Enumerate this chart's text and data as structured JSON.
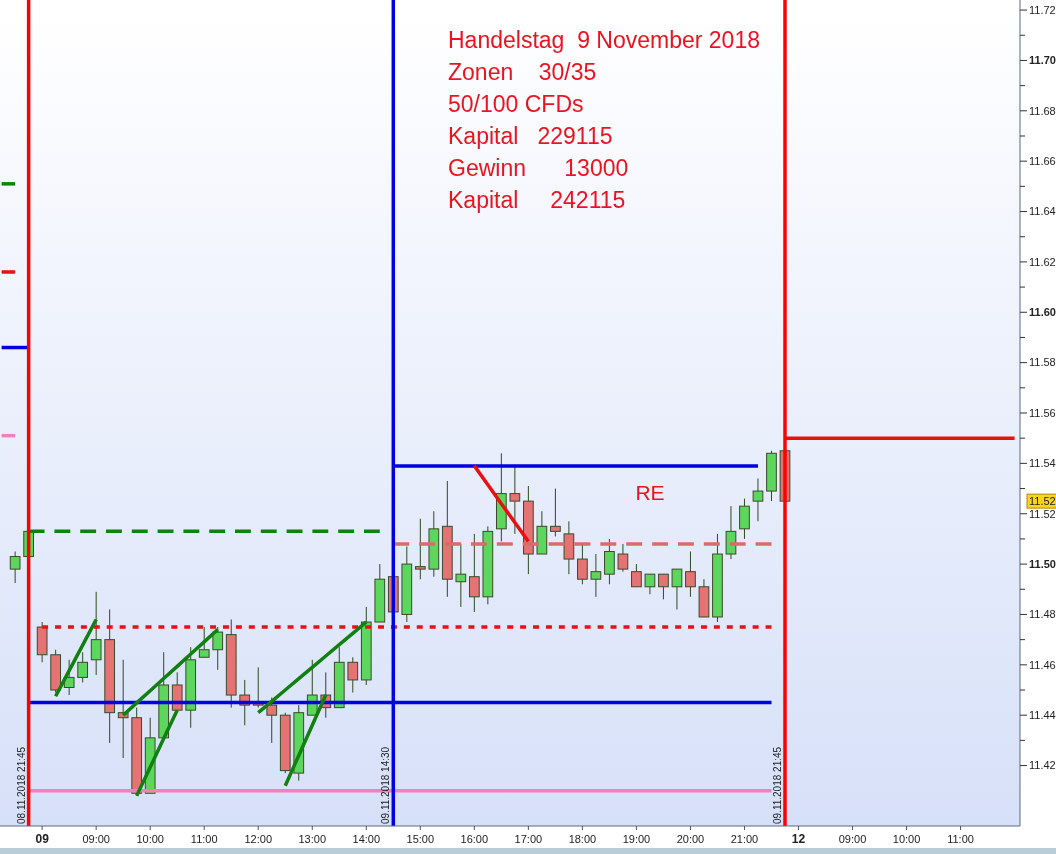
{
  "chart_data": {
    "type": "candlestick",
    "categories": [
      null,
      null,
      null,
      "09",
      null,
      null,
      null,
      "09:00",
      null,
      null,
      null,
      "10:00",
      null,
      null,
      null,
      "11:00",
      null,
      null,
      null,
      "12:00",
      null,
      null,
      null,
      "13:00",
      null,
      null,
      null,
      "14:00",
      null,
      null,
      null,
      "15:00",
      null,
      null,
      null,
      "16:00",
      null,
      null,
      null,
      "17:00",
      null,
      null,
      null,
      "18:00",
      null,
      null,
      null,
      "19:00",
      null,
      null,
      null,
      "20:00",
      null,
      null,
      null,
      "21:00",
      null,
      null,
      null,
      "12",
      null,
      null,
      null,
      "09:00",
      null,
      null,
      null,
      "10:00",
      null,
      null,
      null,
      "11:00",
      null,
      null,
      null,
      null
    ],
    "ylim": [
      11.396,
      11.724
    ],
    "yticks": [
      {
        "value": 11.42,
        "label": "11.42"
      },
      {
        "value": 11.43,
        "label": null
      },
      {
        "value": 11.44,
        "label": "11.44"
      },
      {
        "value": 11.45,
        "label": null
      },
      {
        "value": 11.46,
        "label": "11.46"
      },
      {
        "value": 11.47,
        "label": null
      },
      {
        "value": 11.48,
        "label": "11.48"
      },
      {
        "value": 11.49,
        "label": null
      },
      {
        "value": 11.5,
        "label": "11.50"
      },
      {
        "value": 11.51,
        "label": null
      },
      {
        "value": 11.52,
        "label": "11.52"
      },
      {
        "value": 11.53,
        "label": null
      },
      {
        "value": 11.54,
        "label": "11.54"
      },
      {
        "value": 11.55,
        "label": null
      },
      {
        "value": 11.56,
        "label": "11.56"
      },
      {
        "value": 11.57,
        "label": null
      },
      {
        "value": 11.58,
        "label": "11.58"
      },
      {
        "value": 11.59,
        "label": null
      },
      {
        "value": 11.6,
        "label": "11.60"
      },
      {
        "value": 11.61,
        "label": null
      },
      {
        "value": 11.62,
        "label": "11.62"
      },
      {
        "value": 11.63,
        "label": null
      },
      {
        "value": 11.64,
        "label": "11.64"
      },
      {
        "value": 11.65,
        "label": null
      },
      {
        "value": 11.66,
        "label": "11.66"
      },
      {
        "value": 11.67,
        "label": null
      },
      {
        "value": 11.68,
        "label": "11.68"
      },
      {
        "value": 11.69,
        "label": null
      },
      {
        "value": 11.7,
        "label": "11.70"
      },
      {
        "value": 11.71,
        "label": null
      },
      {
        "value": 11.72,
        "label": "11.72"
      }
    ],
    "series": [
      {
        "type": "line",
        "color": "#0000e0",
        "line_style": "solid",
        "values": [
          null,
          null,
          11.445,
          11.445,
          11.445,
          11.445,
          11.445,
          11.445,
          11.445,
          11.445,
          11.445,
          11.445,
          11.445,
          11.445,
          11.445,
          11.445,
          11.445,
          11.445,
          11.445,
          11.445,
          11.445,
          11.445,
          11.445,
          11.445,
          11.445,
          11.445,
          11.445,
          11.445,
          11.445,
          11.445,
          11.445,
          11.445,
          11.445,
          11.445,
          11.445,
          11.445,
          11.445,
          11.445,
          11.445,
          11.445,
          11.445,
          11.445,
          11.445,
          11.445,
          11.445,
          11.445,
          11.445,
          11.445,
          11.445,
          11.445,
          11.445,
          11.445,
          11.445,
          11.445,
          11.445,
          11.445,
          11.445,
          11.445,
          null,
          null,
          null,
          null,
          null,
          null,
          null,
          null,
          null,
          null,
          null,
          null,
          null,
          null,
          null,
          null,
          null,
          null
        ]
      },
      {
        "type": "line",
        "color": "#f080c0",
        "line_style": "solid",
        "values": [
          null,
          null,
          11.41,
          11.41,
          11.41,
          11.41,
          11.41,
          11.41,
          11.41,
          11.41,
          11.41,
          11.41,
          11.41,
          11.41,
          11.41,
          11.41,
          11.41,
          11.41,
          11.41,
          11.41,
          11.41,
          11.41,
          11.41,
          11.41,
          11.41,
          11.41,
          11.41,
          11.41,
          11.41,
          11.41,
          11.41,
          11.41,
          11.41,
          11.41,
          11.41,
          11.41,
          11.41,
          11.41,
          11.41,
          11.41,
          11.41,
          11.41,
          11.41,
          11.41,
          11.41,
          11.41,
          11.41,
          11.41,
          11.41,
          11.41,
          11.41,
          11.41,
          11.41,
          11.41,
          11.41,
          11.41,
          11.41,
          11.41,
          null,
          null,
          null,
          null,
          null,
          null,
          null,
          null,
          null,
          null,
          null,
          null,
          null,
          null,
          null,
          null,
          null,
          null
        ]
      },
      {
        "type": "line",
        "color": "#e81010",
        "line_style": "dotted",
        "values": [
          null,
          null,
          null,
          11.475,
          11.475,
          11.475,
          11.475,
          11.475,
          11.475,
          11.475,
          11.475,
          11.475,
          11.475,
          11.475,
          11.475,
          11.475,
          11.475,
          11.475,
          11.475,
          11.475,
          11.475,
          11.475,
          11.475,
          11.475,
          11.475,
          11.475,
          11.475,
          11.475,
          11.475,
          11.475,
          11.475,
          11.475,
          11.475,
          11.475,
          11.475,
          11.475,
          11.475,
          11.475,
          11.475,
          11.475,
          11.475,
          11.475,
          11.475,
          11.475,
          11.475,
          11.475,
          11.475,
          11.475,
          11.475,
          11.475,
          11.475,
          11.475,
          11.475,
          11.475,
          11.475,
          11.475,
          11.475,
          11.475,
          null,
          null,
          null,
          null,
          null,
          null,
          null,
          null,
          null,
          null,
          null,
          null,
          null,
          null,
          null,
          null,
          null,
          null
        ]
      },
      {
        "type": "line",
        "color": "#108010",
        "line_style": "dashed",
        "values": [
          null,
          null,
          11.513,
          11.513,
          11.513,
          11.513,
          11.513,
          11.513,
          11.513,
          11.513,
          11.513,
          11.513,
          11.513,
          11.513,
          11.513,
          11.513,
          11.513,
          11.513,
          11.513,
          11.513,
          11.513,
          11.513,
          11.513,
          11.513,
          11.513,
          11.513,
          11.513,
          11.513,
          11.513,
          null,
          null,
          null,
          null,
          null,
          null,
          null,
          null,
          null,
          null,
          null,
          null,
          null,
          null,
          null,
          null,
          null,
          null,
          null,
          null,
          null,
          null,
          null,
          null,
          null,
          null,
          null,
          null,
          null,
          null,
          null,
          null,
          null,
          null,
          null,
          null,
          null,
          null,
          null,
          null,
          null,
          null,
          null,
          null,
          null,
          null,
          null
        ]
      },
      {
        "type": "line",
        "color": "#0000e0",
        "line_style": "solid",
        "values": [
          null,
          null,
          null,
          null,
          null,
          null,
          null,
          null,
          null,
          null,
          null,
          null,
          null,
          null,
          null,
          null,
          null,
          null,
          null,
          null,
          null,
          null,
          null,
          null,
          null,
          null,
          null,
          null,
          null,
          11.539,
          11.539,
          11.539,
          11.539,
          11.539,
          11.539,
          11.539,
          11.539,
          11.539,
          11.539,
          11.539,
          11.539,
          11.539,
          11.539,
          11.539,
          11.539,
          11.539,
          11.539,
          11.539,
          11.539,
          11.539,
          11.539,
          11.539,
          11.539,
          11.539,
          11.539,
          11.539,
          11.539,
          null,
          null,
          null,
          null,
          null,
          null,
          null,
          null,
          null,
          null,
          null,
          null,
          null,
          null,
          null,
          null,
          null,
          null,
          null
        ]
      },
      {
        "type": "line",
        "color": "#d96b6b",
        "line_style": "dashed",
        "values": [
          null,
          null,
          null,
          null,
          null,
          null,
          null,
          null,
          null,
          null,
          null,
          null,
          null,
          null,
          null,
          null,
          null,
          null,
          null,
          null,
          null,
          null,
          null,
          null,
          null,
          null,
          null,
          null,
          null,
          11.508,
          11.508,
          11.508,
          11.508,
          11.508,
          11.508,
          11.508,
          11.508,
          11.508,
          11.508,
          11.508,
          11.508,
          11.508,
          11.508,
          11.508,
          11.508,
          11.508,
          11.508,
          11.508,
          11.508,
          11.508,
          11.508,
          11.508,
          11.508,
          11.508,
          11.508,
          11.508,
          11.508,
          11.508,
          null,
          null,
          null,
          null,
          null,
          null,
          null,
          null,
          null,
          null,
          null,
          null,
          null,
          null,
          null,
          null,
          null,
          null
        ]
      },
      {
        "type": "line",
        "color": "#e81010",
        "line_style": "solid",
        "values": [
          null,
          null,
          null,
          null,
          null,
          null,
          null,
          null,
          null,
          null,
          null,
          null,
          null,
          null,
          null,
          null,
          null,
          null,
          null,
          null,
          null,
          null,
          null,
          null,
          null,
          null,
          null,
          null,
          null,
          null,
          null,
          null,
          null,
          null,
          null,
          null,
          null,
          null,
          null,
          null,
          null,
          null,
          null,
          null,
          null,
          null,
          null,
          null,
          null,
          null,
          null,
          null,
          null,
          null,
          null,
          null,
          null,
          null,
          11.55,
          11.55,
          11.55,
          11.55,
          11.55,
          11.55,
          11.55,
          11.55,
          11.55,
          11.55,
          11.55,
          11.55,
          11.55,
          11.55,
          11.55,
          11.55,
          11.55,
          11.55
        ]
      },
      {
        "type": "line",
        "color": "#0000e0",
        "line_style": "solid",
        "values": [
          11.586,
          11.586,
          11.586,
          null,
          null,
          null,
          null,
          null,
          null,
          null,
          null,
          null,
          null,
          null,
          null,
          null,
          null,
          null,
          null,
          null,
          null,
          null,
          null,
          null,
          null,
          null,
          null,
          null,
          null,
          null,
          null,
          null,
          null,
          null,
          null,
          null,
          null,
          null,
          null,
          null,
          null,
          null,
          null,
          null,
          null,
          null,
          null,
          null,
          null,
          null,
          null,
          null,
          null,
          null,
          null,
          null,
          null,
          null,
          null,
          null,
          null,
          null,
          null,
          null,
          null,
          null,
          null,
          null,
          null,
          null,
          null,
          null,
          null,
          null,
          null,
          null
        ]
      },
      {
        "type": "line",
        "color": "#108010",
        "line_style": "solid",
        "values": [
          11.651,
          11.651,
          null,
          null,
          null,
          null,
          null,
          null,
          null,
          null,
          null,
          null,
          null,
          null,
          null,
          null,
          null,
          null,
          null,
          null,
          null,
          null,
          null,
          null,
          null,
          null,
          null,
          null,
          null,
          null,
          null,
          null,
          null,
          null,
          null,
          null,
          null,
          null,
          null,
          null,
          null,
          null,
          null,
          null,
          null,
          null,
          null,
          null,
          null,
          null,
          null,
          null,
          null,
          null,
          null,
          null,
          null,
          null,
          null,
          null,
          null,
          null,
          null,
          null,
          null,
          null,
          null,
          null,
          null,
          null,
          null,
          null,
          null,
          null,
          null,
          null
        ]
      },
      {
        "type": "line",
        "color": "#e81010",
        "line_style": "solid",
        "values": [
          11.616,
          11.616,
          null,
          null,
          null,
          null,
          null,
          null,
          null,
          null,
          null,
          null,
          null,
          null,
          null,
          null,
          null,
          null,
          null,
          null,
          null,
          null,
          null,
          null,
          null,
          null,
          null,
          null,
          null,
          null,
          null,
          null,
          null,
          null,
          null,
          null,
          null,
          null,
          null,
          null,
          null,
          null,
          null,
          null,
          null,
          null,
          null,
          null,
          null,
          null,
          null,
          null,
          null,
          null,
          null,
          null,
          null,
          null,
          null,
          null,
          null,
          null,
          null,
          null,
          null,
          null,
          null,
          null,
          null,
          null,
          null,
          null,
          null,
          null,
          null,
          null
        ]
      },
      {
        "type": "line",
        "color": "#f080c0",
        "line_style": "solid",
        "values": [
          11.551,
          11.551,
          null,
          null,
          null,
          null,
          null,
          null,
          null,
          null,
          null,
          null,
          null,
          null,
          null,
          null,
          null,
          null,
          null,
          null,
          null,
          null,
          null,
          null,
          null,
          null,
          null,
          null,
          null,
          null,
          null,
          null,
          null,
          null,
          null,
          null,
          null,
          null,
          null,
          null,
          null,
          null,
          null,
          null,
          null,
          null,
          null,
          null,
          null,
          null,
          null,
          null,
          null,
          null,
          null,
          null,
          null,
          null,
          null,
          null,
          null,
          null,
          null,
          null,
          null,
          null,
          null,
          null,
          null,
          null,
          null,
          null,
          null,
          null,
          null,
          null
        ]
      },
      {
        "type": "line",
        "color": "#e81010",
        "line_style": "solid",
        "values": [
          null,
          null,
          null,
          null,
          null,
          null,
          null,
          null,
          null,
          null,
          null,
          null,
          null,
          null,
          null,
          null,
          null,
          null,
          null,
          null,
          null,
          null,
          null,
          null,
          null,
          null,
          null,
          null,
          null,
          null,
          null,
          null,
          null,
          null,
          null,
          11.539,
          11.5315,
          11.524,
          11.5165,
          11.509,
          null,
          null,
          null,
          null,
          null,
          null,
          null,
          null,
          null,
          null,
          null,
          null,
          null,
          null,
          null,
          null,
          null,
          null,
          null,
          null,
          null,
          null,
          null,
          null,
          null,
          null,
          null,
          null,
          null,
          null,
          null,
          null,
          null,
          null,
          null,
          null
        ]
      },
      {
        "type": "line",
        "color": "#108010",
        "line_style": "solid",
        "values": [
          null,
          null,
          null,
          null,
          11.4475,
          11.4577,
          11.4678,
          11.478,
          null,
          null,
          null,
          null,
          null,
          null,
          null,
          null,
          null,
          null,
          null,
          null,
          null,
          null,
          null,
          null,
          null,
          null,
          null,
          null,
          null,
          null,
          null,
          null,
          null,
          null,
          null,
          null,
          null,
          null,
          null,
          null,
          null,
          null,
          null,
          null,
          null,
          null,
          null,
          null,
          null,
          null,
          null,
          null,
          null,
          null,
          null,
          null,
          null,
          null,
          null,
          null,
          null,
          null,
          null,
          null,
          null,
          null,
          null,
          null,
          null,
          null,
          null,
          null,
          null,
          null,
          null,
          null
        ]
      },
      {
        "type": "line",
        "color": "#108010",
        "line_style": "solid",
        "values": [
          null,
          null,
          null,
          null,
          null,
          null,
          null,
          null,
          null,
          null,
          11.408,
          11.4193,
          11.4307,
          11.442,
          null,
          null,
          null,
          null,
          null,
          null,
          null,
          null,
          null,
          null,
          null,
          null,
          null,
          null,
          null,
          null,
          null,
          null,
          null,
          null,
          null,
          null,
          null,
          null,
          null,
          null,
          null,
          null,
          null,
          null,
          null,
          null,
          null,
          null,
          null,
          null,
          null,
          null,
          null,
          null,
          null,
          null,
          null,
          null,
          null,
          null,
          null,
          null,
          null,
          null,
          null,
          null,
          null,
          null,
          null,
          null,
          null,
          null,
          null,
          null,
          null,
          null
        ]
      },
      {
        "type": "line",
        "color": "#108010",
        "line_style": "solid",
        "values": [
          null,
          null,
          null,
          null,
          null,
          null,
          null,
          null,
          null,
          11.44,
          11.4449,
          11.4497,
          11.4546,
          11.4594,
          11.4643,
          11.4691,
          11.474,
          null,
          null,
          null,
          null,
          null,
          null,
          null,
          null,
          null,
          null,
          null,
          null,
          null,
          null,
          null,
          null,
          null,
          null,
          null,
          null,
          null,
          null,
          null,
          null,
          null,
          null,
          null,
          null,
          null,
          null,
          null,
          null,
          null,
          null,
          null,
          null,
          null,
          null,
          null,
          null,
          null,
          null,
          null,
          null,
          null,
          null,
          null,
          null,
          null,
          null,
          null,
          null,
          null,
          null,
          null,
          null,
          null,
          null,
          null
        ]
      },
      {
        "type": "line",
        "color": "#108010",
        "line_style": "solid",
        "values": [
          null,
          null,
          null,
          null,
          null,
          null,
          null,
          null,
          null,
          null,
          null,
          null,
          null,
          null,
          null,
          null,
          null,
          null,
          null,
          null,
          null,
          11.412,
          11.424,
          11.436,
          11.448,
          null,
          null,
          null,
          null,
          null,
          null,
          null,
          null,
          null,
          null,
          null,
          null,
          null,
          null,
          null,
          null,
          null,
          null,
          null,
          null,
          null,
          null,
          null,
          null,
          null,
          null,
          null,
          null,
          null,
          null,
          null,
          null,
          null,
          null,
          null,
          null,
          null,
          null,
          null,
          null,
          null,
          null,
          null,
          null,
          null,
          null,
          null,
          null,
          null,
          null,
          null
        ]
      },
      {
        "type": "line",
        "color": "#108010",
        "line_style": "solid",
        "values": [
          null,
          null,
          null,
          null,
          null,
          null,
          null,
          null,
          null,
          null,
          null,
          null,
          null,
          null,
          null,
          null,
          null,
          null,
          null,
          11.441,
          11.4455,
          11.45,
          11.4545,
          11.459,
          11.4635,
          11.468,
          11.4725,
          11.477,
          null,
          null,
          null,
          null,
          null,
          null,
          null,
          null,
          null,
          null,
          null,
          null,
          null,
          null,
          null,
          null,
          null,
          null,
          null,
          null,
          null,
          null,
          null,
          null,
          null,
          null,
          null,
          null,
          null,
          null,
          null,
          null,
          null,
          null,
          null,
          null,
          null,
          null,
          null,
          null,
          null,
          null,
          null,
          null,
          null,
          null,
          null,
          null
        ]
      },
      {
        "ohlc": [
          null,
          [
            11.498,
            11.505,
            11.4925,
            11.503
          ],
          [
            11.503,
            11.514,
            11.503,
            11.513
          ],
          [
            11.475,
            11.477,
            11.461,
            11.464
          ],
          [
            11.464,
            11.466,
            11.449,
            11.45
          ],
          [
            11.451,
            11.462,
            11.448,
            11.455
          ],
          [
            11.455,
            11.465,
            11.453,
            11.461
          ],
          [
            11.462,
            11.489,
            11.456,
            11.47
          ],
          [
            11.47,
            11.482,
            11.429,
            11.441
          ],
          [
            11.441,
            11.462,
            11.423,
            11.439
          ],
          [
            11.439,
            11.443,
            11.408,
            11.409
          ],
          [
            11.409,
            11.439,
            11.409,
            11.431
          ],
          [
            11.431,
            11.465,
            11.431,
            11.452
          ],
          [
            11.452,
            11.457,
            11.442,
            11.442
          ],
          [
            11.442,
            11.467,
            11.435,
            11.462
          ],
          [
            11.463,
            11.475,
            11.463,
            11.466
          ],
          [
            11.466,
            11.475,
            11.458,
            11.473
          ],
          [
            11.472,
            11.478,
            11.443,
            11.448
          ],
          [
            11.448,
            11.454,
            11.436,
            11.444
          ],
          [
            11.445,
            11.459,
            11.443,
            11.444
          ],
          [
            11.444,
            11.447,
            11.429,
            11.44
          ],
          [
            11.44,
            11.441,
            11.417,
            11.418
          ],
          [
            11.417,
            11.444,
            11.414,
            11.441
          ],
          [
            11.44,
            11.462,
            11.44,
            11.448
          ],
          [
            11.448,
            11.457,
            11.439,
            11.443
          ],
          [
            11.443,
            11.467,
            11.443,
            11.461
          ],
          [
            11.461,
            11.463,
            11.449,
            11.454
          ],
          [
            11.454,
            11.483,
            11.452,
            11.477
          ],
          [
            11.477,
            11.5,
            11.477,
            11.494
          ],
          [
            11.495,
            11.496,
            11.48,
            11.481
          ],
          [
            11.48,
            11.507,
            11.477,
            11.5
          ],
          [
            11.499,
            11.518,
            11.494,
            11.498
          ],
          [
            11.498,
            11.521,
            11.495,
            11.514
          ],
          [
            11.515,
            11.533,
            11.487,
            11.494
          ],
          [
            11.493,
            11.508,
            11.483,
            11.496
          ],
          [
            11.495,
            11.512,
            11.481,
            11.487
          ],
          [
            11.487,
            11.515,
            11.484,
            11.513
          ],
          [
            11.514,
            11.544,
            11.509,
            11.528
          ],
          [
            11.528,
            11.539,
            11.512,
            11.525
          ],
          [
            11.525,
            11.531,
            11.496,
            11.504
          ],
          [
            11.504,
            11.521,
            11.504,
            11.515
          ],
          [
            11.515,
            11.53,
            11.511,
            11.513
          ],
          [
            11.512,
            11.517,
            11.496,
            11.502
          ],
          [
            11.502,
            11.508,
            11.492,
            11.494
          ],
          [
            11.494,
            11.504,
            11.487,
            11.497
          ],
          [
            11.496,
            11.51,
            11.492,
            11.505
          ],
          [
            11.504,
            11.508,
            11.497,
            11.498
          ],
          [
            11.497,
            11.5,
            11.491,
            11.491
          ],
          [
            11.491,
            11.496,
            11.488,
            11.496
          ],
          [
            11.496,
            11.496,
            11.486,
            11.491
          ],
          [
            11.491,
            11.498,
            11.482,
            11.498
          ],
          [
            11.497,
            11.505,
            11.487,
            11.491
          ],
          [
            11.491,
            11.494,
            11.479,
            11.479
          ],
          [
            11.479,
            11.512,
            11.477,
            11.504
          ],
          [
            11.504,
            11.523,
            11.502,
            11.513
          ],
          [
            11.514,
            11.526,
            11.51,
            11.523
          ],
          [
            11.525,
            11.534,
            11.517,
            11.529
          ],
          [
            11.529,
            11.545,
            11.525,
            11.544
          ],
          [
            11.545,
            11.545,
            11.525,
            11.525
          ],
          null,
          null,
          null,
          null,
          null,
          null,
          null,
          null,
          null,
          null,
          null,
          null,
          null,
          null,
          null,
          null,
          null
        ],
        "colors": [
          null,
          "#5cd65c",
          "#5cd65c",
          "#e57373",
          "#e57373",
          "#5cd65c",
          "#5cd65c",
          "#5cd65c",
          "#e57373",
          "#e57373",
          "#e57373",
          "#5cd65c",
          "#5cd65c",
          "#e57373",
          "#5cd65c",
          "#5cd65c",
          "#5cd65c",
          "#e57373",
          "#e57373",
          "#e57373",
          "#e57373",
          "#e57373",
          "#5cd65c",
          "#5cd65c",
          "#e57373",
          "#5cd65c",
          "#e57373",
          "#5cd65c",
          "#5cd65c",
          "#e57373",
          "#5cd65c",
          "#e57373",
          "#5cd65c",
          "#e57373",
          "#5cd65c",
          "#e57373",
          "#5cd65c",
          "#5cd65c",
          "#e57373",
          "#e57373",
          "#5cd65c",
          "#e57373",
          "#e57373",
          "#e57373",
          "#5cd65c",
          "#5cd65c",
          "#e57373",
          "#e57373",
          "#5cd65c",
          "#e57373",
          "#5cd65c",
          "#e57373",
          "#e57373",
          "#5cd65c",
          "#5cd65c",
          "#5cd65c",
          "#5cd65c",
          "#5cd65c",
          "#e57373",
          null,
          null,
          null,
          null,
          null,
          null,
          null,
          null,
          null,
          null,
          null,
          null,
          null,
          null,
          null,
          null,
          null
        ]
      }
    ],
    "annotations": [
      "08.11.2018 21:45",
      "09.11.2018 14:30",
      "09.11.2018 21:45",
      "Handelstag  9 November 2018",
      "Zonen    30/35",
      "50/100 CFDs",
      "Kapital   229115",
      "Gewinn      13000",
      "Kapital     242115",
      "RE",
      "11.52"
    ]
  }
}
